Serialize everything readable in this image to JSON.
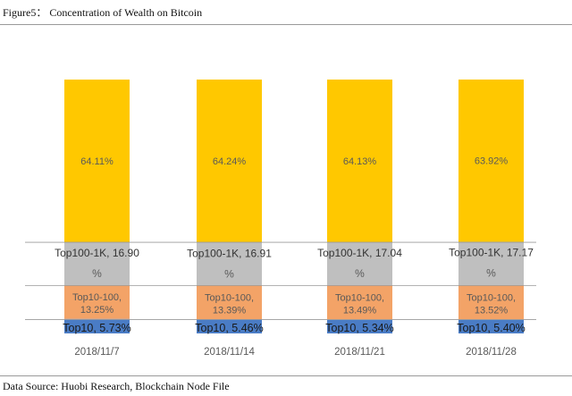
{
  "figure_title": "Figure5：  Concentration of Wealth on Bitcoin",
  "source_note": "Data Source: Huobi Research, Blockchain Node File",
  "colors": {
    "rest": "#FFC800",
    "top100_1k": "#BFBFBF",
    "top10_100": "#F3A367",
    "top10": "#4A7CC5",
    "label_gray": "#595959"
  },
  "chart_data": {
    "type": "bar",
    "stacked": true,
    "categories": [
      "2018/11/7",
      "2018/11/14",
      "2018/11/21",
      "2018/11/28"
    ],
    "series": [
      {
        "key": "top10",
        "values": [
          5.73,
          5.46,
          5.34,
          5.4
        ],
        "labels": [
          "Top10, 5.73%",
          "Top10, 5.46%",
          "Top10, 5.34%",
          "Top10, 5.40%"
        ]
      },
      {
        "key": "top10_100",
        "values": [
          13.25,
          13.39,
          13.49,
          13.52
        ],
        "labels": [
          [
            "Top10-100,",
            "13.25%"
          ],
          [
            "Top10-100,",
            "13.39%"
          ],
          [
            "Top10-100,",
            "13.49%"
          ],
          [
            "Top10-100,",
            "13.52%"
          ]
        ]
      },
      {
        "key": "top100_1k",
        "values": [
          16.9,
          16.91,
          17.04,
          17.17
        ],
        "labels": [
          [
            "Top100-1K, 16.90",
            "%"
          ],
          [
            "Top100-1K, 16.91",
            "%"
          ],
          [
            "Top100-1K, 17.04",
            "%"
          ],
          [
            "Top100-1K, 17.17",
            "%"
          ]
        ]
      },
      {
        "key": "rest",
        "values": [
          64.11,
          64.24,
          64.13,
          63.92
        ],
        "labels": [
          "64.11%",
          "64.24%",
          "64.13%",
          "63.92%"
        ]
      }
    ],
    "ylim": [
      0,
      100
    ],
    "grid": false,
    "legend": "none"
  }
}
